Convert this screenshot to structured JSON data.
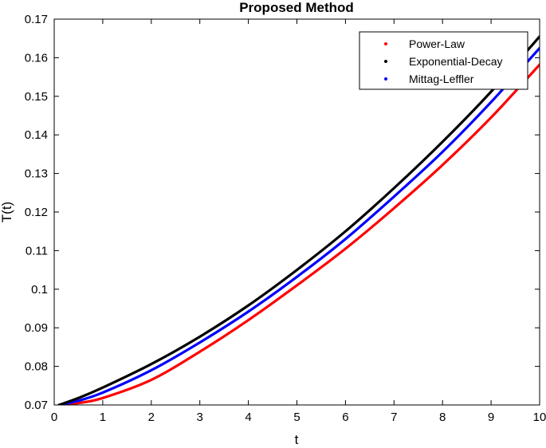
{
  "chart_data": {
    "type": "line",
    "title": "Proposed Method",
    "xlabel": "t",
    "ylabel": "T(t)",
    "xlim": [
      0,
      10
    ],
    "ylim": [
      0.07,
      0.17
    ],
    "xticks": [
      0,
      1,
      2,
      3,
      4,
      5,
      6,
      7,
      8,
      9,
      10
    ],
    "yticks": [
      0.07,
      0.08,
      0.09,
      0.1,
      0.11,
      0.12,
      0.13,
      0.14,
      0.15,
      0.16,
      0.17
    ],
    "ytick_labels": [
      "0.07",
      "0.08",
      "0.09",
      "0.1",
      "0.11",
      "0.12",
      "0.13",
      "0.14",
      "0.15",
      "0.16",
      "0.17"
    ],
    "grid": false,
    "legend_position": "top-right",
    "x": [
      0.1,
      0.5,
      1,
      2,
      3,
      4,
      5,
      6,
      7,
      8,
      9,
      10
    ],
    "series": [
      {
        "name": "Power-Law",
        "color": "#ff0000",
        "values": [
          0.07,
          0.0705,
          0.0718,
          0.0765,
          0.0838,
          0.092,
          0.101,
          0.1105,
          0.121,
          0.1322,
          0.1445,
          0.1582
        ]
      },
      {
        "name": "Exponential-Decay",
        "color": "#000000",
        "values": [
          0.07,
          0.0718,
          0.0745,
          0.0806,
          0.0877,
          0.0958,
          0.105,
          0.115,
          0.1262,
          0.1382,
          0.1512,
          0.1655
        ]
      },
      {
        "name": "Mittag-Leffler",
        "color": "#0000ff",
        "values": [
          0.07,
          0.0711,
          0.0732,
          0.079,
          0.0862,
          0.0942,
          0.1032,
          0.113,
          0.124,
          0.1356,
          0.1485,
          0.1625
        ]
      }
    ]
  }
}
